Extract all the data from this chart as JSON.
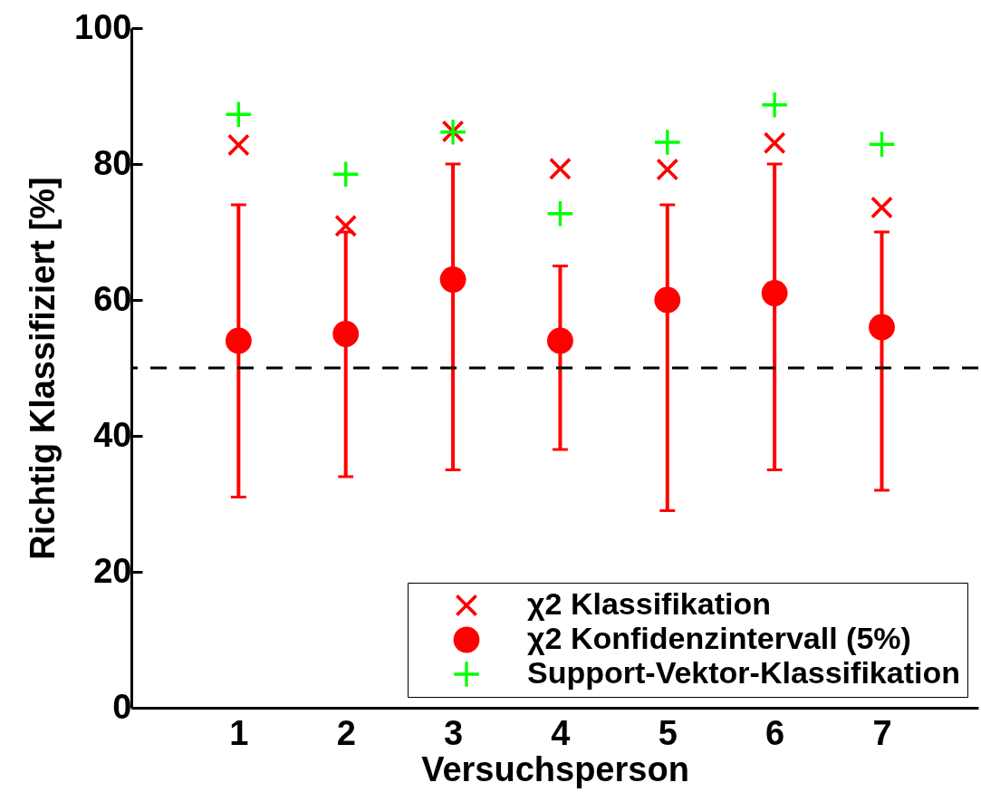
{
  "chart_data": {
    "type": "scatter",
    "xlabel": "Versuchsperson",
    "ylabel": "Richtig Klassifiziert [%]",
    "x": [
      1,
      2,
      3,
      4,
      5,
      6,
      7
    ],
    "xlim": [
      0,
      7.9
    ],
    "xticks": [
      1,
      2,
      3,
      4,
      5,
      6,
      7
    ],
    "ylim": [
      0,
      100
    ],
    "yticks": [
      0,
      20,
      40,
      60,
      80,
      100
    ],
    "legend": "bottom right",
    "series": [
      {
        "name": "χ2 Klassifikation",
        "color": "#ff0000",
        "marker": "x",
        "values": [
          82.8,
          70.9,
          84.8,
          79.3,
          79.2,
          83.1,
          73.6
        ]
      },
      {
        "name": "χ2 Konfidenzintervall (5%)",
        "color": "#ff0000",
        "marker": "circle",
        "values": [
          54,
          55,
          63,
          54,
          60,
          61,
          56
        ],
        "errors": [
          [
            31,
            74
          ],
          [
            34,
            70
          ],
          [
            35,
            80
          ],
          [
            38,
            65
          ],
          [
            29,
            74
          ],
          [
            35,
            80
          ],
          [
            32,
            70
          ]
        ]
      },
      {
        "name": "Support-Vektor-Klassifikation",
        "color": "#00ff00",
        "marker": "cross",
        "values": [
          87.3,
          78.5,
          84.7,
          72.7,
          83.2,
          88.7,
          82.9
        ]
      }
    ],
    "ref_lines": [
      {
        "axis": "y",
        "value": 50,
        "label": null,
        "color": "#000000",
        "line_style": "dashed"
      }
    ]
  }
}
